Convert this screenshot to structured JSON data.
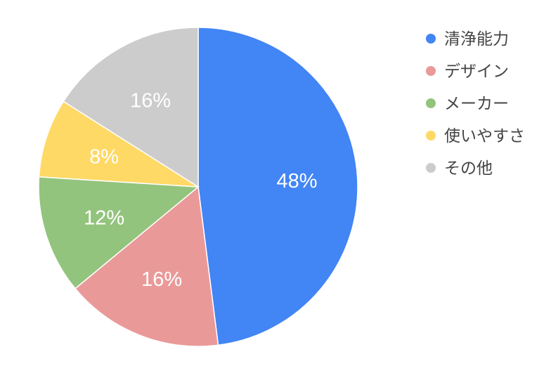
{
  "chart_data": {
    "type": "pie",
    "categories": [
      "清浄能力",
      "デザイン",
      "メーカー",
      "使いやすさ",
      "その他"
    ],
    "values": [
      48,
      16,
      12,
      8,
      16
    ],
    "data_labels": [
      "48%",
      "16%",
      "12%",
      "8%",
      "16%"
    ],
    "colors": [
      "#4285f4",
      "#ea9999",
      "#93c47d",
      "#ffd966",
      "#cccccc"
    ],
    "start": "top",
    "direction": "clockwise",
    "legend_position": "right",
    "title": ""
  }
}
